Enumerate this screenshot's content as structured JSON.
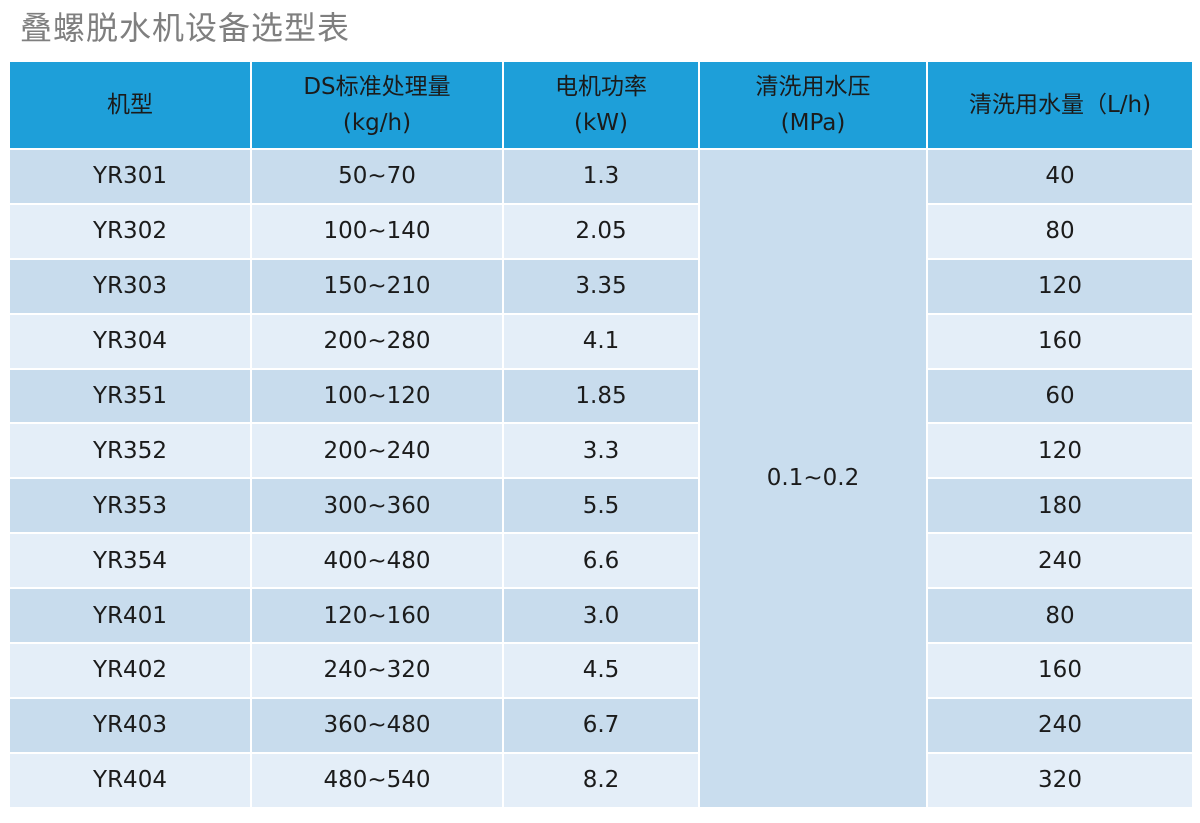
{
  "title": "叠螺脱水机设备选型表",
  "colors": {
    "header_bg": "#1e9fd9",
    "row_odd": "#c8dced",
    "row_even": "#e4eef8",
    "title_text": "#7f7f7f"
  },
  "headers": [
    {
      "line1": "机型",
      "line2": ""
    },
    {
      "line1": "DS标准处理量",
      "line2": "(kg/h)"
    },
    {
      "line1": "电机功率",
      "line2": "(kW)"
    },
    {
      "line1": "清洗用水压",
      "line2": "(MPa)"
    },
    {
      "line1": "清洗用水量（L/h)",
      "line2": ""
    }
  ],
  "pressure_merged": "0.1~0.2",
  "rows": [
    {
      "model": "YR301",
      "ds": "50~70",
      "power": "1.3",
      "water": "40"
    },
    {
      "model": "YR302",
      "ds": "100~140",
      "power": "2.05",
      "water": "80"
    },
    {
      "model": "YR303",
      "ds": "150~210",
      "power": "3.35",
      "water": "120"
    },
    {
      "model": "YR304",
      "ds": "200~280",
      "power": "4.1",
      "water": "160"
    },
    {
      "model": "YR351",
      "ds": "100~120",
      "power": "1.85",
      "water": "60"
    },
    {
      "model": "YR352",
      "ds": "200~240",
      "power": "3.3",
      "water": "120"
    },
    {
      "model": "YR353",
      "ds": "300~360",
      "power": "5.5",
      "water": "180"
    },
    {
      "model": "YR354",
      "ds": "400~480",
      "power": "6.6",
      "water": "240"
    },
    {
      "model": "YR401",
      "ds": "120~160",
      "power": "3.0",
      "water": "80"
    },
    {
      "model": "YR402",
      "ds": "240~320",
      "power": "4.5",
      "water": "160"
    },
    {
      "model": "YR403",
      "ds": "360~480",
      "power": "6.7",
      "water": "240"
    },
    {
      "model": "YR404",
      "ds": "480~540",
      "power": "8.2",
      "water": "320"
    }
  ]
}
